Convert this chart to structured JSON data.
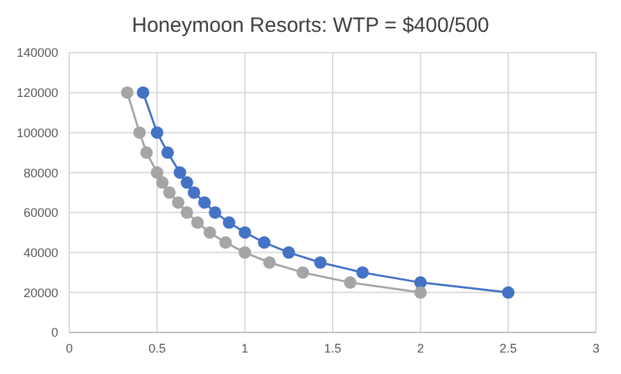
{
  "chart_data": {
    "type": "line",
    "title": "Honeymoon Resorts: WTP = $400/500",
    "xlim": [
      0,
      3
    ],
    "xticks": [
      0,
      0.5,
      1,
      1.5,
      2,
      2.5,
      3
    ],
    "ylim": [
      0,
      140000
    ],
    "yticks": [
      0,
      20000,
      40000,
      60000,
      80000,
      100000,
      120000,
      140000
    ],
    "grid": true,
    "marker": "circle",
    "line_style": "solid",
    "legend": false,
    "series": [
      {
        "color": "#4472c4",
        "x": [
          0.42,
          0.5,
          0.56,
          0.63,
          0.67,
          0.71,
          0.77,
          0.83,
          0.91,
          1.0,
          1.11,
          1.25,
          1.43,
          1.67,
          2.0,
          2.5
        ],
        "values": [
          120000,
          100000,
          90000,
          80000,
          75000,
          70000,
          65000,
          60000,
          55000,
          50000,
          45000,
          40000,
          35000,
          30000,
          25000,
          20000
        ]
      },
      {
        "color": "#a5a5a5",
        "x": [
          0.33,
          0.4,
          0.44,
          0.5,
          0.53,
          0.57,
          0.62,
          0.67,
          0.73,
          0.8,
          0.89,
          1.0,
          1.14,
          1.33,
          1.6,
          2.0
        ],
        "values": [
          120000,
          100000,
          90000,
          80000,
          75000,
          70000,
          65000,
          60000,
          55000,
          50000,
          45000,
          40000,
          35000,
          30000,
          25000,
          20000
        ]
      }
    ]
  }
}
